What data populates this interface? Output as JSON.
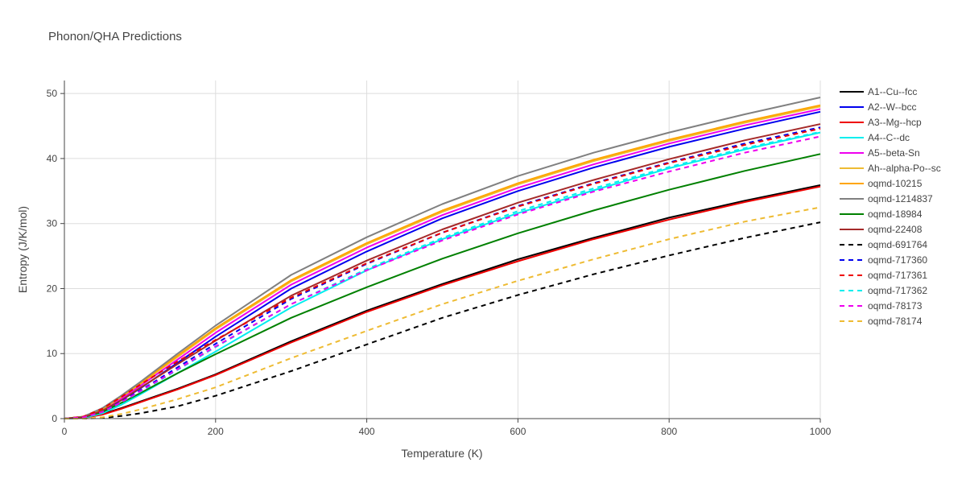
{
  "chart_data": {
    "type": "line",
    "title": "Phonon/QHA Predictions",
    "xlabel": "Temperature (K)",
    "ylabel": "Entropy (J/K/mol)",
    "xlim": [
      0,
      1000
    ],
    "ylim": [
      0,
      52
    ],
    "xticks": [
      0,
      200,
      400,
      600,
      800,
      1000
    ],
    "yticks": [
      0,
      10,
      20,
      30,
      40,
      50
    ],
    "grid": true,
    "legend_position": "right",
    "x": [
      0,
      25,
      50,
      75,
      100,
      150,
      200,
      300,
      400,
      500,
      600,
      700,
      800,
      900,
      1000
    ],
    "series": [
      {
        "name": "A1--Cu--fcc",
        "color": "#000000",
        "dash": "solid",
        "values": [
          0,
          0.1,
          0.7,
          1.6,
          2.6,
          4.6,
          6.8,
          11.9,
          16.6,
          20.7,
          24.5,
          27.8,
          30.9,
          33.5,
          35.9
        ]
      },
      {
        "name": "A2--W--bcc",
        "color": "#0000ee",
        "dash": "solid",
        "values": [
          0,
          0.2,
          1.1,
          2.8,
          4.6,
          8.6,
          12.6,
          20.0,
          25.7,
          30.8,
          35.0,
          38.6,
          41.8,
          44.6,
          47.2
        ]
      },
      {
        "name": "A3--Mg--hcp",
        "color": "#ee0000",
        "dash": "solid",
        "values": [
          0,
          0.1,
          0.6,
          1.5,
          2.5,
          4.5,
          6.7,
          11.7,
          16.4,
          20.5,
          24.2,
          27.6,
          30.6,
          33.3,
          35.7
        ]
      },
      {
        "name": "A4--C--dc",
        "color": "#00eeee",
        "dash": "solid",
        "values": [
          0,
          0.1,
          0.8,
          2.1,
          3.7,
          7.0,
          10.3,
          17.1,
          22.8,
          27.6,
          31.6,
          35.1,
          38.5,
          41.4,
          44.0
        ]
      },
      {
        "name": "A5--beta-Sn",
        "color": "#ee00ee",
        "dash": "solid",
        "values": [
          0,
          0.3,
          1.3,
          3.1,
          5.0,
          9.1,
          13.2,
          20.6,
          26.3,
          31.3,
          35.5,
          39.1,
          42.3,
          45.1,
          47.6
        ]
      },
      {
        "name": "Ah--alpha-Po--sc",
        "color": "#eebb33",
        "dash": "solid",
        "values": [
          0,
          0.3,
          1.4,
          3.3,
          5.3,
          9.5,
          13.7,
          21.1,
          26.8,
          31.8,
          36.0,
          39.6,
          42.7,
          45.5,
          48.0
        ]
      },
      {
        "name": "oqmd-10215",
        "color": "#ffa500",
        "dash": "solid",
        "values": [
          0,
          0.3,
          1.5,
          3.4,
          5.4,
          9.7,
          13.9,
          21.3,
          27.0,
          32.0,
          36.2,
          39.8,
          42.9,
          45.7,
          48.2
        ]
      },
      {
        "name": "oqmd-1214837",
        "color": "#808080",
        "dash": "solid",
        "values": [
          0,
          0.3,
          1.6,
          3.5,
          5.6,
          10.0,
          14.3,
          22.1,
          27.9,
          33.0,
          37.3,
          40.9,
          44.0,
          46.8,
          49.4
        ]
      },
      {
        "name": "oqmd-18984",
        "color": "#008000",
        "dash": "solid",
        "values": [
          0,
          0.2,
          1.0,
          2.4,
          3.9,
          7.0,
          9.9,
          15.5,
          20.2,
          24.6,
          28.5,
          32.0,
          35.2,
          38.1,
          40.7
        ]
      },
      {
        "name": "oqmd-22408",
        "color": "#a52a2a",
        "dash": "solid",
        "values": [
          0,
          0.2,
          1.2,
          2.8,
          4.7,
          8.4,
          12.0,
          18.9,
          24.3,
          29.1,
          33.2,
          36.7,
          39.9,
          42.8,
          45.3
        ]
      },
      {
        "name": "oqmd-691764",
        "color": "#000000",
        "dash": "dash",
        "values": [
          0,
          0.0,
          0.1,
          0.4,
          0.8,
          1.9,
          3.5,
          7.3,
          11.4,
          15.5,
          19.0,
          22.2,
          25.1,
          27.8,
          30.2
        ]
      },
      {
        "name": "oqmd-717360",
        "color": "#0000ee",
        "dash": "dash",
        "values": [
          0,
          0.2,
          1.0,
          2.6,
          4.3,
          7.9,
          11.5,
          18.4,
          23.8,
          28.6,
          32.7,
          36.2,
          39.4,
          42.3,
          44.8
        ]
      },
      {
        "name": "oqmd-717361",
        "color": "#ee0000",
        "dash": "dash",
        "values": [
          0,
          0.3,
          1.5,
          3.3,
          5.2,
          8.8,
          12.1,
          18.6,
          23.9,
          28.6,
          32.6,
          36.1,
          39.3,
          42.1,
          44.6
        ]
      },
      {
        "name": "oqmd-717362",
        "color": "#00eeee",
        "dash": "dash",
        "values": [
          0,
          0.2,
          1.0,
          2.5,
          4.1,
          7.5,
          11.0,
          17.6,
          23.0,
          27.8,
          31.9,
          35.4,
          38.7,
          41.6,
          44.1
        ]
      },
      {
        "name": "oqmd-78173",
        "color": "#ee00ee",
        "dash": "dash",
        "values": [
          0,
          0.2,
          1.0,
          2.5,
          4.2,
          7.6,
          11.1,
          17.6,
          22.8,
          27.4,
          31.4,
          34.9,
          38.0,
          40.9,
          43.4
        ]
      },
      {
        "name": "oqmd-78174",
        "color": "#eebb33",
        "dash": "dash",
        "values": [
          0,
          0.0,
          0.2,
          0.7,
          1.4,
          3.0,
          4.8,
          9.3,
          13.5,
          17.6,
          21.2,
          24.5,
          27.6,
          30.3,
          32.5
        ]
      }
    ]
  }
}
